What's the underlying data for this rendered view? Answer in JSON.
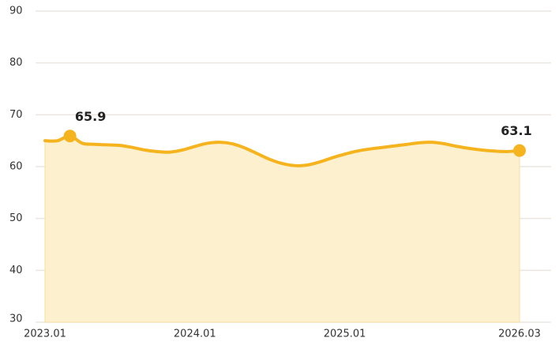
{
  "chart_data": {
    "type": "area",
    "categories": [
      "2023.01",
      null,
      null,
      null,
      null,
      null,
      null,
      null,
      null,
      null,
      null,
      null,
      "2024.01",
      null,
      null,
      null,
      null,
      null,
      null,
      null,
      null,
      null,
      null,
      null,
      "2025.01",
      null,
      null,
      null,
      null,
      null,
      null,
      null,
      null,
      null,
      null,
      null,
      null,
      null,
      "2026.03"
    ],
    "values": [
      65.0,
      65.0,
      65.9,
      64.5,
      64.3,
      64.2,
      64.1,
      63.7,
      63.2,
      62.9,
      62.8,
      63.2,
      63.9,
      64.5,
      64.7,
      64.4,
      63.6,
      62.5,
      61.4,
      60.6,
      60.2,
      60.3,
      60.9,
      61.7,
      62.4,
      63.0,
      63.4,
      63.7,
      64.0,
      64.3,
      64.6,
      64.7,
      64.4,
      63.9,
      63.5,
      63.2,
      63.0,
      62.9,
      63.1
    ],
    "highlight_indices": [
      2,
      38
    ],
    "color": "#f5b41e",
    "fill_color": "#fdf0cf",
    "ylim": [
      30,
      90
    ],
    "yticks": [
      30,
      40,
      50,
      60,
      70,
      80,
      90
    ],
    "grid": true
  }
}
